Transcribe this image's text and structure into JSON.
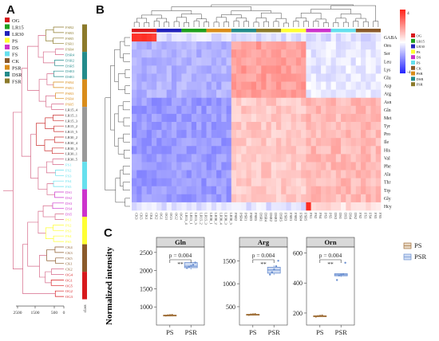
{
  "panels": {
    "a": "A",
    "b": "B",
    "c": "C"
  },
  "group_legend": {
    "items": [
      {
        "label": "OG",
        "color": "#d7191c"
      },
      {
        "label": "LR15",
        "color": "#1fa01f"
      },
      {
        "label": "LR30",
        "color": "#2222bb"
      },
      {
        "label": "PS",
        "color": "#ffff33"
      },
      {
        "label": "DS",
        "color": "#cc33cc"
      },
      {
        "label": "FS",
        "color": "#66e0ee"
      },
      {
        "label": "CK",
        "color": "#8b5a2b"
      },
      {
        "label": "PSR",
        "color": "#d98c1a"
      },
      {
        "label": "DSR",
        "color": "#238b8b"
      },
      {
        "label": "FSR",
        "color": "#8c7a2b"
      }
    ]
  },
  "dendro_axis": {
    "ticks": [
      "2500",
      "1500",
      "500",
      "0"
    ],
    "class_label": "class"
  },
  "tree_leaves": [
    "FSR2",
    "FSR3",
    "FSR5",
    "FSR1",
    "FSR4",
    "DSR4",
    "DSR2",
    "DSR5",
    "DSR3",
    "DSR1",
    "PSR4",
    "PSR1",
    "PSR3",
    "PSR4",
    "PSR5",
    "LR15_4",
    "LR15_1",
    "LR15_3",
    "LR15_2",
    "LR15_5",
    "LR30_2",
    "LR30_4",
    "LR30_3",
    "LR30_1",
    "LR30_5",
    "FS1",
    "FS2",
    "FS3",
    "FS4",
    "FS5",
    "DS1",
    "DS2",
    "DS3",
    "DS4",
    "DS5",
    "PS1",
    "PS2",
    "PS3",
    "PS4",
    "PS5",
    "CK4",
    "CK3",
    "CK5",
    "CK1",
    "CK2",
    "OG4",
    "OG1",
    "OG5",
    "OG2",
    "OG3"
  ],
  "heatmap": {
    "rows": [
      "GABA",
      "Orn",
      "Ser",
      "Leu",
      "Lys",
      "Glu",
      "Asp",
      "Arg",
      "Asn",
      "Gln",
      "Met",
      "Tyr",
      "Pro",
      "Ile",
      "His",
      "Val",
      "Phe",
      "Ala",
      "Thr",
      "Trp",
      "Gly",
      "Hcy"
    ],
    "columns": [
      "CK3",
      "CK5",
      "CK1",
      "CK4",
      "CK2",
      "OG1",
      "OG3",
      "OG5",
      "OG2",
      "OG4",
      "LR15_4",
      "LR15_1",
      "LR15_5",
      "LR15_2",
      "LR15_3",
      "LR30_1",
      "LR30_2",
      "LR30_4",
      "LR30_3",
      "LR30_5",
      "PSR2",
      "PSR4",
      "PSR1",
      "PSR3",
      "PSR5",
      "DSR1",
      "DSR4",
      "DSR2",
      "DSR3",
      "DSR5",
      "FSR3",
      "FSR1",
      "FSR2",
      "FSR4",
      "FSR5",
      "PS1",
      "PS2",
      "PS4",
      "PS3",
      "PS5",
      "DS3",
      "DS1",
      "DS5",
      "DS4",
      "DS2",
      "FS2",
      "FS1",
      "FS4",
      "FS3",
      "FS5"
    ],
    "column_groups": [
      "OG",
      "LR30",
      "LR15",
      "PSR",
      "DSR",
      "FSR",
      "PS",
      "DS",
      "FS",
      "CK"
    ],
    "column_group_colors": [
      "#d7191c",
      "#2222bb",
      "#1fa01f",
      "#d98c1a",
      "#238b8b",
      "#8c7a2b",
      "#ffff33",
      "#cc33cc",
      "#66e0ee",
      "#8b5a2b"
    ],
    "colorbar": {
      "max_label": "4",
      "min_label": "-4",
      "high": "#d7191c",
      "mid": "#ffffff",
      "low": "#2c2cc8"
    }
  },
  "boxplot_legend": [
    {
      "label": "PS",
      "color": "#a0703a"
    },
    {
      "label": "PSR",
      "color": "#6a8fd0"
    }
  ],
  "chart_data": [
    {
      "type": "box",
      "title": "Gln",
      "categories": [
        "PS",
        "PSR"
      ],
      "ylabel": "Normalized intensity",
      "ylim": [
        500,
        2650
      ],
      "yticks": [
        1000,
        1500,
        2000,
        2500
      ],
      "medians": [
        770,
        2120
      ],
      "q1": [
        765,
        2080
      ],
      "q3": [
        775,
        2220
      ],
      "whisker_low": [
        760,
        2030
      ],
      "whisker_high": [
        780,
        2240
      ],
      "points": [
        [
          760,
          770,
          775,
          780
        ],
        [
          2070,
          2110,
          2130,
          2160,
          2220
        ]
      ],
      "annotation": {
        "text": "p = 0.004",
        "stars": "**"
      }
    },
    {
      "type": "box",
      "title": "Arg",
      "categories": [
        "PS",
        "PSR"
      ],
      "ylabel": "",
      "ylim": [
        100,
        1800
      ],
      "yticks": [
        500,
        1000,
        1500
      ],
      "medians": [
        330,
        1300
      ],
      "q1": [
        325,
        1230
      ],
      "q3": [
        335,
        1360
      ],
      "whisker_low": [
        320,
        1190
      ],
      "whisker_high": [
        340,
        1400
      ],
      "points": [
        [
          320,
          330,
          335,
          340
        ],
        [
          1200,
          1250,
          1310,
          1380,
          1500
        ]
      ],
      "annotation": {
        "text": "p = 0.004",
        "stars": "**"
      }
    },
    {
      "type": "box",
      "title": "Orn",
      "categories": [
        "PS",
        "PSR"
      ],
      "ylabel": "",
      "ylim": [
        120,
        640
      ],
      "yticks": [
        200,
        400,
        600
      ],
      "medians": [
        180,
        455
      ],
      "q1": [
        178,
        448
      ],
      "q3": [
        182,
        462
      ],
      "whisker_low": [
        176,
        440
      ],
      "whisker_high": [
        184,
        466
      ],
      "points": [
        [
          176,
          180,
          182,
          184
        ],
        [
          420,
          450,
          455,
          460,
          535
        ]
      ],
      "annotation": {
        "text": "p = 0.004",
        "stars": "**"
      }
    }
  ]
}
